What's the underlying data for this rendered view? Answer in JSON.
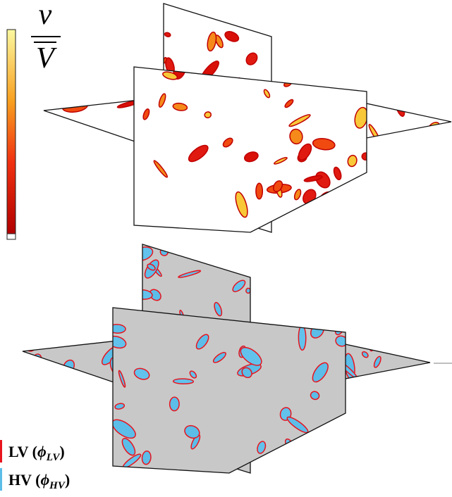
{
  "colorbar": {
    "numerator": "v",
    "denominator": "V"
  },
  "legend": [
    {
      "name": "LV",
      "symbol": "ϕ",
      "subscript": "LV",
      "color": "#e8141e"
    },
    {
      "name": "HV",
      "symbol": "ϕ",
      "subscript": "HV",
      "color": "#5bbde8"
    }
  ]
}
